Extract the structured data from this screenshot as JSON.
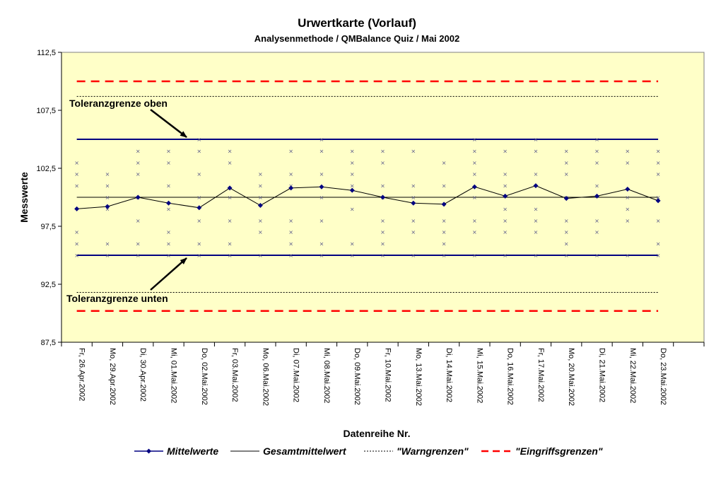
{
  "chart_data": {
    "type": "line",
    "title": "Urwertkarte (Vorlauf)",
    "subtitle": "Analysenmethode / QMBalance Quiz / Mai 2002",
    "xlabel": "Datenreihe Nr.",
    "ylabel": "Messwerte",
    "ylim": [
      87.5,
      112.5
    ],
    "yticks": [
      "87,5",
      "92,5",
      "97,5",
      "102,5",
      "107,5",
      "112,5"
    ],
    "grid": false,
    "background": "#FFFFC8",
    "categories": [
      "Fr, 26.Apr.2002",
      "Mo, 29.Apr.2002",
      "Di, 30.Apr.2002",
      "Mi, 01.Mai.2002",
      "Do, 02.Mai.2002",
      "Fr, 03.Mai.2002",
      "Mo, 06.Mai.2002",
      "Di, 07.Mai.2002",
      "Mi, 08.Mai.2002",
      "Do, 09.Mai.2002",
      "Fr, 10.Mai.2002",
      "Mo, 13.Mai.2002",
      "Di, 14.Mai.2002",
      "Mi, 15.Mai.2002",
      "Do, 16.Mai.2002",
      "Fr, 17.Mai.2002",
      "Mo, 20.Mai.2002",
      "Di, 21.Mai.2002",
      "Mi, 22.Mai.2002",
      "Do, 23.Mai.2002"
    ],
    "series": [
      {
        "name": "Mittelwerte",
        "color": "#000080",
        "values": [
          99.0,
          99.2,
          100.0,
          99.5,
          99.1,
          100.8,
          99.3,
          100.8,
          100.9,
          100.6,
          100.0,
          99.5,
          99.4,
          100.9,
          100.1,
          101.0,
          99.9,
          100.1,
          100.7,
          99.7
        ]
      },
      {
        "name": "Gesamtmittelwert",
        "color": "#000000",
        "value": 100.0
      },
      {
        "name": "\"Warngrenzen\"",
        "color": "#000000",
        "upper": 108.7,
        "lower": 91.8
      },
      {
        "name": "\"Eingriffsgrenzen\"",
        "color": "#FF0000",
        "upper": 110.0,
        "lower": 90.2
      }
    ],
    "tolerance_limits": {
      "upper": 105.0,
      "lower": 95.0,
      "color": "#000080"
    },
    "individual_values": [
      [
        103,
        102,
        101,
        97,
        96,
        95
      ],
      [
        102,
        101,
        100,
        99,
        96,
        95
      ],
      [
        104,
        103,
        102,
        100,
        98,
        96,
        95
      ],
      [
        104,
        103,
        101,
        99,
        97,
        96,
        95
      ],
      [
        105,
        104,
        102,
        100,
        98,
        96,
        95
      ],
      [
        104,
        103,
        100,
        98,
        96,
        95
      ],
      [
        102,
        101,
        100,
        98,
        97,
        95
      ],
      [
        104,
        102,
        101,
        98,
        97,
        96,
        95
      ],
      [
        105,
        104,
        102,
        100,
        98,
        96,
        95
      ],
      [
        104,
        103,
        102,
        101,
        99,
        96,
        95
      ],
      [
        104,
        103,
        101,
        100,
        98,
        97,
        96,
        95
      ],
      [
        104,
        101,
        100,
        98,
        97,
        95
      ],
      [
        103,
        101,
        98,
        97,
        96,
        95
      ],
      [
        105,
        104,
        103,
        102,
        100,
        98,
        97,
        95
      ],
      [
        104,
        102,
        101,
        99,
        98,
        97,
        95
      ],
      [
        105,
        104,
        102,
        99,
        98,
        97,
        95
      ],
      [
        104,
        103,
        102,
        100,
        98,
        97,
        96,
        95
      ],
      [
        105,
        104,
        103,
        101,
        98,
        97,
        95
      ],
      [
        104,
        103,
        100,
        99,
        98,
        95
      ],
      [
        104,
        103,
        102,
        100,
        98,
        96,
        95
      ]
    ],
    "annotations": [
      {
        "text": "Toleranzgrenze oben",
        "target": 105.0
      },
      {
        "text": "Toleranzgrenze unten",
        "target": 95.0
      }
    ],
    "legend": {
      "placement": "bottom",
      "entries": [
        "Mittelwerte",
        "Gesamtmittelwert",
        "\"Warngrenzen\"",
        "\"Eingriffsgrenzen\""
      ]
    }
  }
}
